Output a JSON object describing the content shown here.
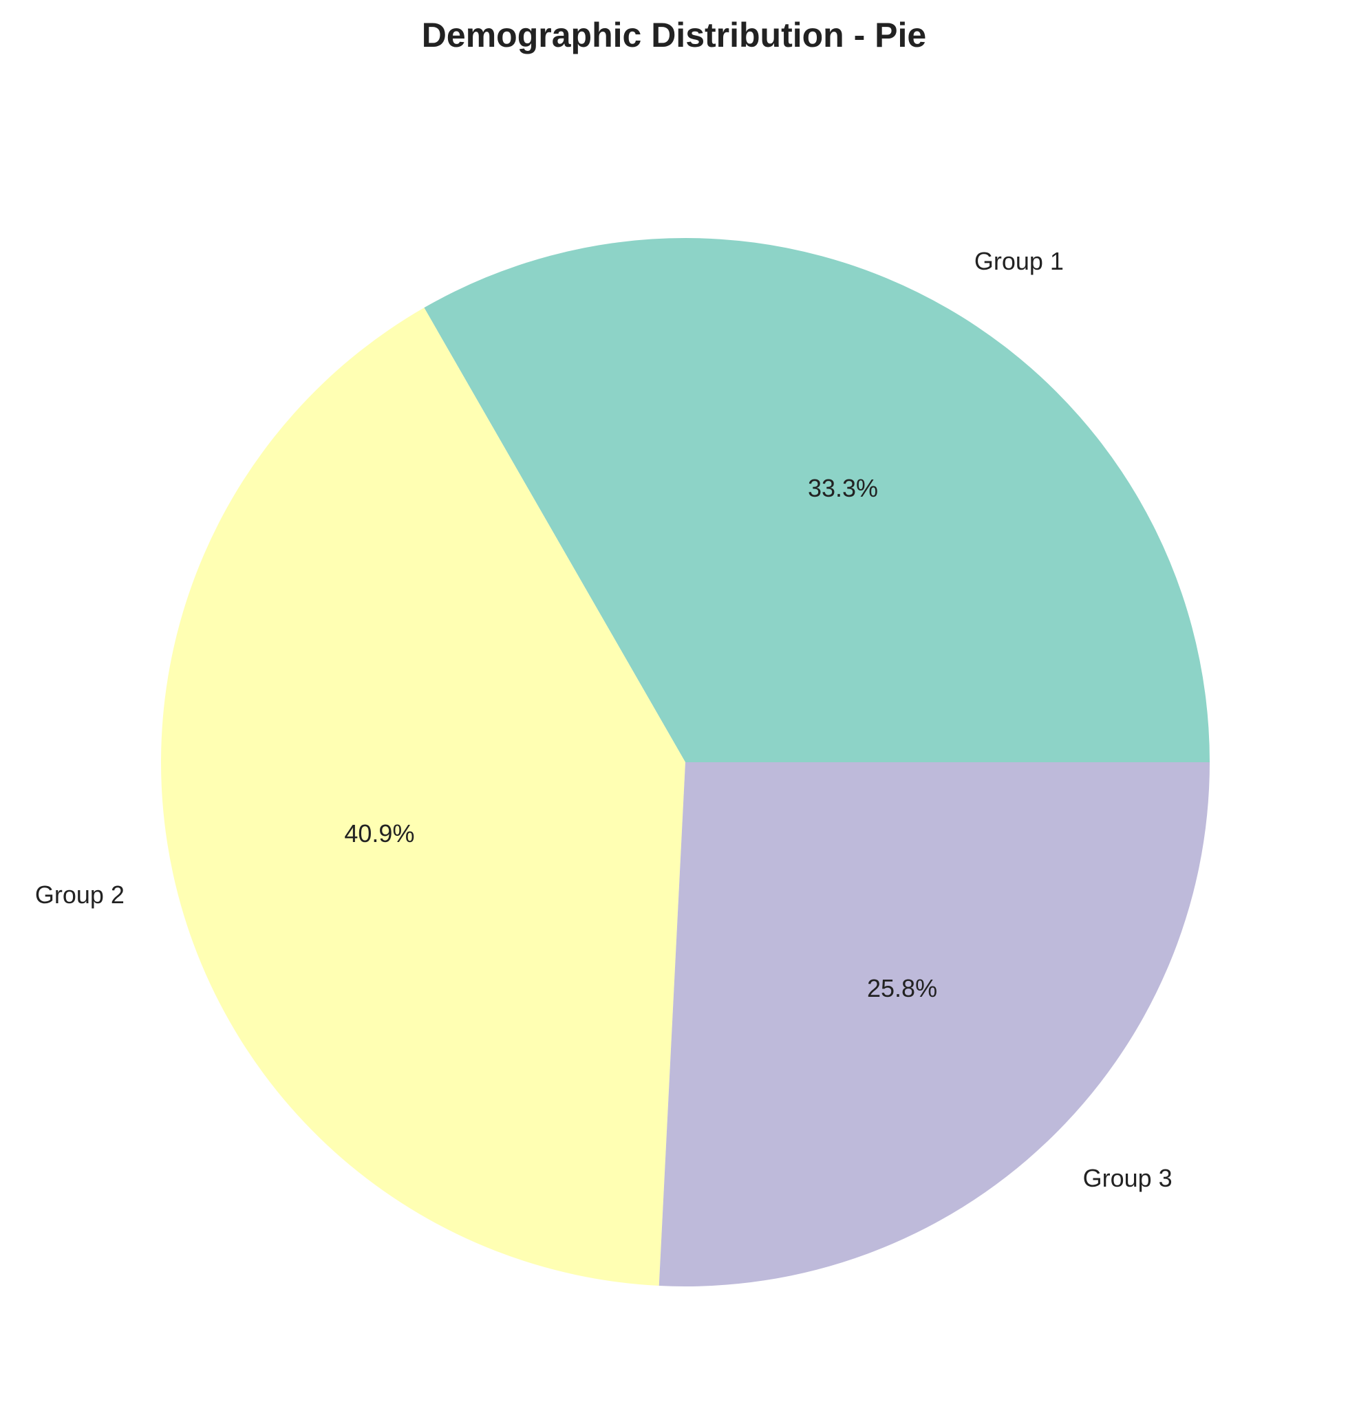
{
  "chart_data": {
    "type": "pie",
    "title": "Demographic Distribution - Pie",
    "slices": [
      {
        "label": "Group 1",
        "percent_label": "33.3%",
        "value": 33.3,
        "color": "#8dd3c7"
      },
      {
        "label": "Group 2",
        "percent_label": "40.9%",
        "value": 40.9,
        "color": "#ffffb3"
      },
      {
        "label": "Group 3",
        "percent_label": "25.8%",
        "value": 25.8,
        "color": "#bebada"
      }
    ],
    "start_angle_deg": 0,
    "direction": "counterclockwise",
    "legend": "none"
  }
}
